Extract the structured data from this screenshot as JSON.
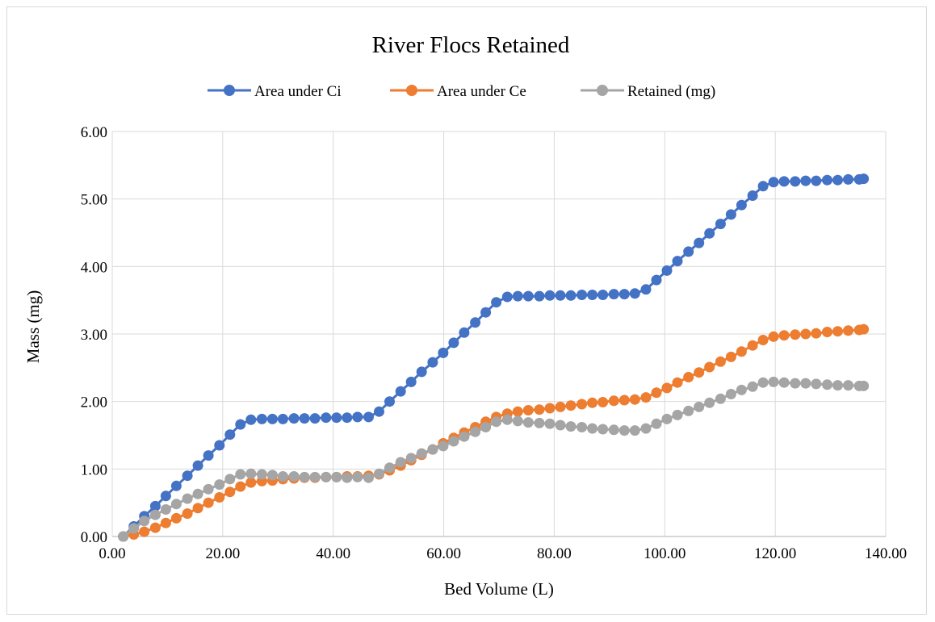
{
  "chart_data": {
    "type": "line",
    "title": "River Flocs Retained",
    "xlabel": "Bed Volume (L)",
    "ylabel": "Mass (mg)",
    "xlim": [
      0,
      140
    ],
    "ylim": [
      0,
      6
    ],
    "x_ticks": [
      "0.00",
      "20.00",
      "40.00",
      "60.00",
      "80.00",
      "100.00",
      "120.00",
      "140.00"
    ],
    "y_ticks": [
      "0.00",
      "1.00",
      "2.00",
      "3.00",
      "4.00",
      "5.00",
      "6.00"
    ],
    "grid": true,
    "legend_position": "top",
    "x": [
      2.0,
      3.9,
      5.8,
      7.8,
      9.7,
      11.6,
      13.6,
      15.5,
      17.4,
      19.4,
      21.3,
      23.2,
      25.1,
      27.1,
      29.0,
      30.9,
      32.9,
      34.8,
      36.7,
      38.7,
      40.6,
      42.5,
      44.4,
      46.4,
      48.3,
      50.2,
      52.2,
      54.1,
      56.0,
      58.0,
      59.9,
      61.8,
      63.7,
      65.7,
      67.6,
      69.5,
      71.5,
      73.4,
      75.3,
      77.3,
      79.2,
      81.1,
      83.0,
      85.0,
      86.9,
      88.8,
      90.8,
      92.7,
      94.6,
      96.6,
      98.5,
      100.4,
      102.3,
      104.3,
      106.2,
      108.1,
      110.1,
      112.0,
      113.9,
      115.9,
      117.8,
      119.7,
      121.6,
      123.6,
      125.5,
      127.4,
      129.4,
      131.3,
      133.2,
      135.2,
      136.0
    ],
    "series": [
      {
        "name": "Area under Ci",
        "color": "#4472C4",
        "values": [
          0.0,
          0.15,
          0.3,
          0.45,
          0.6,
          0.75,
          0.9,
          1.05,
          1.2,
          1.35,
          1.51,
          1.66,
          1.73,
          1.74,
          1.74,
          1.74,
          1.75,
          1.75,
          1.75,
          1.76,
          1.76,
          1.76,
          1.77,
          1.77,
          1.85,
          2.0,
          2.15,
          2.29,
          2.44,
          2.58,
          2.72,
          2.87,
          3.02,
          3.17,
          3.32,
          3.47,
          3.55,
          3.56,
          3.56,
          3.56,
          3.57,
          3.57,
          3.57,
          3.58,
          3.58,
          3.58,
          3.59,
          3.59,
          3.6,
          3.66,
          3.8,
          3.94,
          4.08,
          4.22,
          4.35,
          4.49,
          4.63,
          4.77,
          4.91,
          5.05,
          5.19,
          5.25,
          5.26,
          5.26,
          5.27,
          5.27,
          5.28,
          5.28,
          5.29,
          5.29,
          5.3
        ]
      },
      {
        "name": "Area under Ce",
        "color": "#ED7D31",
        "values": [
          0.0,
          0.03,
          0.07,
          0.13,
          0.2,
          0.27,
          0.34,
          0.42,
          0.5,
          0.58,
          0.66,
          0.74,
          0.8,
          0.82,
          0.83,
          0.85,
          0.86,
          0.87,
          0.87,
          0.88,
          0.88,
          0.89,
          0.89,
          0.9,
          0.92,
          0.98,
          1.05,
          1.13,
          1.21,
          1.29,
          1.38,
          1.46,
          1.54,
          1.62,
          1.7,
          1.77,
          1.82,
          1.85,
          1.87,
          1.88,
          1.9,
          1.92,
          1.94,
          1.96,
          1.98,
          1.99,
          2.01,
          2.02,
          2.03,
          2.06,
          2.13,
          2.2,
          2.28,
          2.36,
          2.43,
          2.51,
          2.59,
          2.66,
          2.74,
          2.83,
          2.91,
          2.96,
          2.98,
          2.99,
          3.0,
          3.01,
          3.03,
          3.04,
          3.05,
          3.06,
          3.07
        ]
      },
      {
        "name": "Retained (mg)",
        "color": "#A5A5A5",
        "values": [
          0.0,
          0.12,
          0.23,
          0.32,
          0.4,
          0.48,
          0.56,
          0.63,
          0.7,
          0.77,
          0.85,
          0.92,
          0.93,
          0.92,
          0.91,
          0.89,
          0.89,
          0.88,
          0.88,
          0.88,
          0.88,
          0.87,
          0.88,
          0.87,
          0.93,
          1.02,
          1.1,
          1.16,
          1.23,
          1.29,
          1.34,
          1.41,
          1.48,
          1.55,
          1.62,
          1.7,
          1.73,
          1.71,
          1.69,
          1.68,
          1.67,
          1.65,
          1.63,
          1.62,
          1.6,
          1.59,
          1.58,
          1.57,
          1.57,
          1.6,
          1.67,
          1.74,
          1.8,
          1.86,
          1.92,
          1.98,
          2.04,
          2.11,
          2.17,
          2.22,
          2.28,
          2.29,
          2.28,
          2.27,
          2.27,
          2.26,
          2.25,
          2.24,
          2.24,
          2.23,
          2.23
        ]
      }
    ]
  }
}
